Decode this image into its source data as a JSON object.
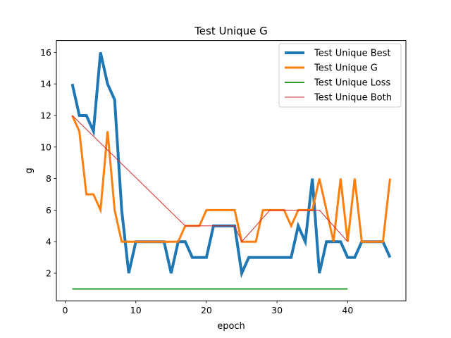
{
  "chart_data": {
    "type": "line",
    "title": "Test Unique G",
    "xlabel": "epoch",
    "ylabel": "g",
    "xlim": [
      -1.25,
      48.25
    ],
    "ylim": [
      0.25,
      16.75
    ],
    "xticks": [
      0,
      10,
      20,
      30,
      40
    ],
    "yticks": [
      2,
      4,
      6,
      8,
      10,
      12,
      14,
      16
    ],
    "grid": false,
    "legend_position": "top-right",
    "series": [
      {
        "name": "Test Unique Best",
        "color": "#1f77b4",
        "x": [
          1,
          2,
          3,
          4,
          5,
          6,
          7,
          8,
          9,
          10,
          11,
          12,
          13,
          14,
          15,
          16,
          17,
          18,
          19,
          20,
          21,
          22,
          23,
          24,
          25,
          26,
          27,
          28,
          29,
          30,
          31,
          32,
          33,
          34,
          35,
          36,
          37,
          38,
          39,
          40,
          41,
          42,
          43,
          44,
          45,
          46
        ],
        "y": [
          14,
          12,
          12,
          11,
          16,
          14,
          13,
          6,
          2,
          4,
          4,
          4,
          4,
          4,
          2,
          4,
          4,
          3,
          3,
          3,
          5,
          5,
          5,
          5,
          2,
          3,
          3,
          3,
          3,
          3,
          3,
          3,
          5,
          4,
          8,
          2,
          4,
          4,
          4,
          3,
          3,
          4,
          4,
          4,
          4,
          3
        ]
      },
      {
        "name": "Test Unique G",
        "color": "#ff7f0e",
        "x": [
          1,
          2,
          3,
          4,
          5,
          6,
          7,
          8,
          9,
          10,
          11,
          12,
          13,
          14,
          15,
          16,
          17,
          18,
          19,
          20,
          21,
          22,
          23,
          24,
          25,
          26,
          27,
          28,
          29,
          30,
          31,
          32,
          33,
          34,
          35,
          36,
          37,
          38,
          39,
          40,
          41,
          42,
          43,
          44,
          45,
          46
        ],
        "y": [
          12,
          11,
          7,
          7,
          6,
          11,
          6,
          4,
          4,
          4,
          4,
          4,
          4,
          4,
          4,
          4,
          5,
          5,
          5,
          6,
          6,
          6,
          6,
          6,
          4,
          4,
          4,
          6,
          6,
          6,
          6,
          5,
          6,
          6,
          6,
          8,
          6,
          4,
          8,
          4,
          8,
          4,
          4,
          4,
          4,
          8
        ]
      },
      {
        "name": "Test Unique Loss",
        "color": "#2ca02c",
        "x": [
          1,
          40
        ],
        "y": [
          1,
          1
        ]
      },
      {
        "name": "Test Unique Both",
        "color": "#d62728",
        "x": [
          1,
          17,
          24,
          25,
          29,
          36,
          40
        ],
        "y": [
          12,
          5,
          5,
          4,
          6,
          6,
          4
        ]
      }
    ]
  }
}
